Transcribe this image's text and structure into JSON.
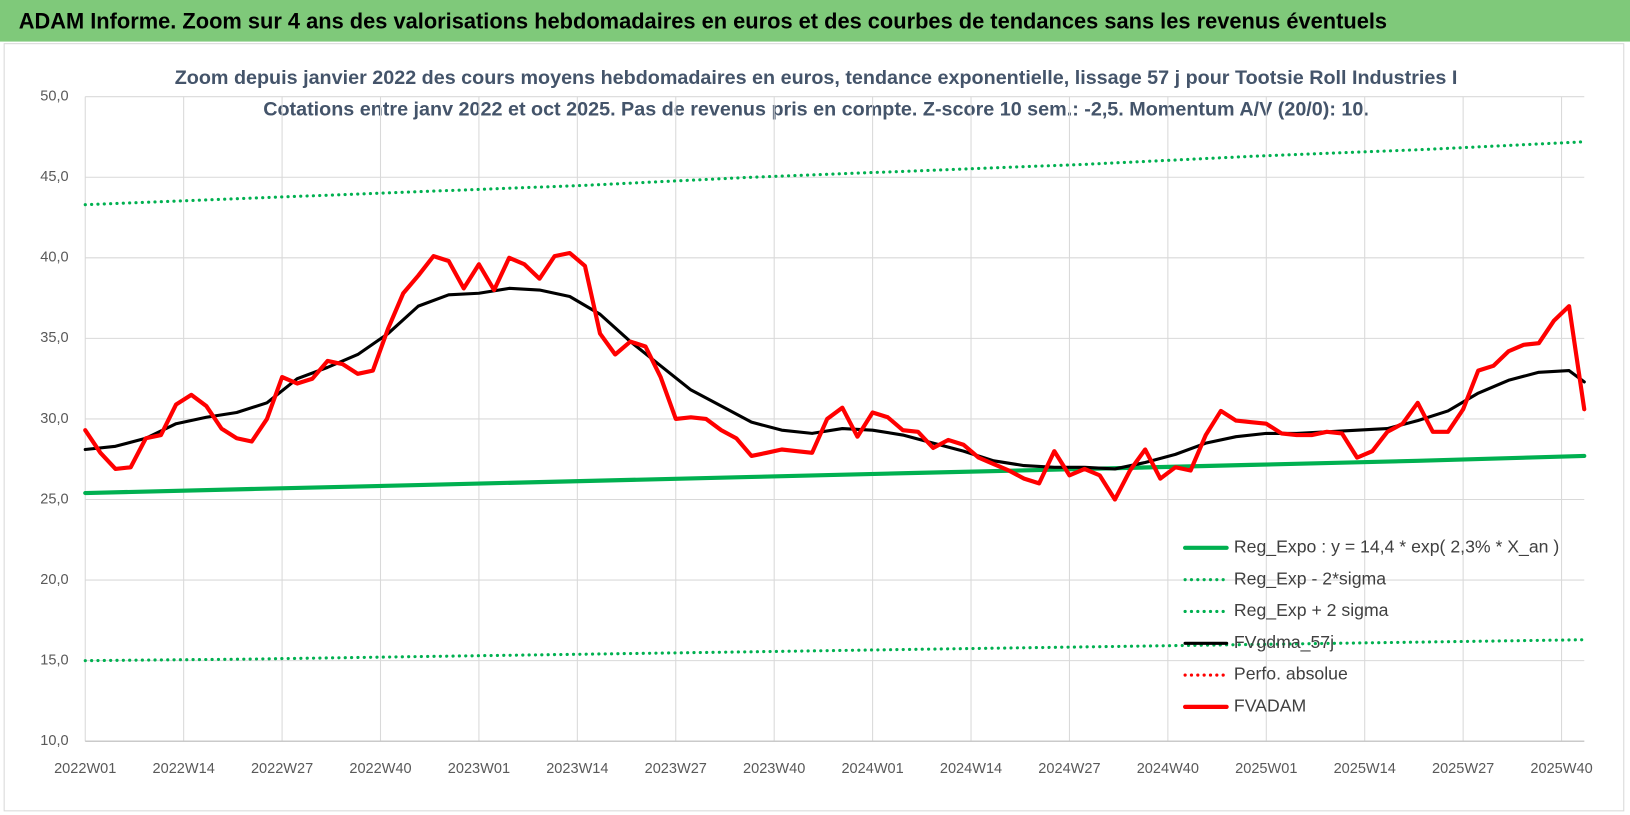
{
  "chart_data": {
    "type": "line",
    "header": "ADAM Informe. Zoom sur 4 ans des valorisations hebdomadaires en euros et des courbes de tendances sans les revenus éventuels",
    "title": "Zoom depuis janvier 2022 des cours moyens hebdomadaires en euros, tendance exponentielle, lissage 57 j pour Tootsie Roll Industries I",
    "subtitle": "Cotations entre janv 2022 et oct 2025. Pas de revenus pris en compte. Z-score 10 sem.: -2,5. Momentum A/V (20/0): 10.",
    "xlim": [
      0,
      198
    ],
    "xticks": [
      {
        "value": 0,
        "label": "2022W01"
      },
      {
        "value": 13,
        "label": "2022W14"
      },
      {
        "value": 26,
        "label": "2022W27"
      },
      {
        "value": 39,
        "label": "2022W40"
      },
      {
        "value": 52,
        "label": "2023W01"
      },
      {
        "value": 65,
        "label": "2023W14"
      },
      {
        "value": 78,
        "label": "2023W27"
      },
      {
        "value": 91,
        "label": "2023W40"
      },
      {
        "value": 104,
        "label": "2024W01"
      },
      {
        "value": 117,
        "label": "2024W14"
      },
      {
        "value": 130,
        "label": "2024W27"
      },
      {
        "value": 143,
        "label": "2024W40"
      },
      {
        "value": 156,
        "label": "2025W01"
      },
      {
        "value": 169,
        "label": "2025W14"
      },
      {
        "value": 182,
        "label": "2025W27"
      },
      {
        "value": 195,
        "label": "2025W40"
      }
    ],
    "ylim": [
      10,
      50
    ],
    "yticks": [
      {
        "value": 10,
        "label": "10,0"
      },
      {
        "value": 15,
        "label": "15,0"
      },
      {
        "value": 20,
        "label": "20,0"
      },
      {
        "value": 25,
        "label": "25,0"
      },
      {
        "value": 30,
        "label": "30,0"
      },
      {
        "value": 35,
        "label": "35,0"
      },
      {
        "value": 40,
        "label": "40,0"
      },
      {
        "value": 45,
        "label": "45,0"
      },
      {
        "value": 50,
        "label": "50,0"
      }
    ],
    "grid": true,
    "legend": "lower right",
    "series": [
      {
        "name": "Reg_Expo : y = 14,4 * exp( 2,3% * X_an )",
        "color": "#00b050",
        "style": "solid",
        "width": 4,
        "x": [
          0,
          22,
          44,
          66,
          88,
          110,
          132,
          154,
          176,
          198
        ],
        "values": [
          25.4,
          25.65,
          25.9,
          26.15,
          26.4,
          26.65,
          26.9,
          27.15,
          27.4,
          27.7
        ]
      },
      {
        "name": "Reg_Exp - 2*sigma",
        "color": "#00b050",
        "style": "dotted",
        "width": 3,
        "x": [
          0,
          22,
          44,
          66,
          88,
          110,
          132,
          154,
          176,
          198
        ],
        "values": [
          15.0,
          15.1,
          15.25,
          15.4,
          15.55,
          15.7,
          15.85,
          16.0,
          16.15,
          16.3
        ]
      },
      {
        "name": "Reg_Exp + 2 sigma",
        "color": "#00b050",
        "style": "dotted",
        "width": 3,
        "x": [
          0,
          22,
          44,
          66,
          88,
          110,
          132,
          154,
          176,
          198
        ],
        "values": [
          43.3,
          43.7,
          44.1,
          44.5,
          45.0,
          45.4,
          45.8,
          46.3,
          46.7,
          47.2
        ]
      },
      {
        "name": "FVgdma_57j",
        "color": "#000000",
        "style": "solid",
        "width": 3,
        "x": [
          0,
          4,
          8,
          12,
          16,
          20,
          24,
          28,
          32,
          36,
          40,
          44,
          48,
          52,
          56,
          60,
          64,
          68,
          72,
          76,
          80,
          84,
          88,
          92,
          96,
          100,
          104,
          108,
          112,
          116,
          120,
          124,
          128,
          132,
          136,
          140,
          144,
          148,
          152,
          156,
          160,
          164,
          168,
          172,
          176,
          180,
          184,
          188,
          192,
          196,
          198
        ],
        "values": [
          28.1,
          28.3,
          28.8,
          29.7,
          30.1,
          30.4,
          31.0,
          32.5,
          33.2,
          34.0,
          35.3,
          37.0,
          37.7,
          37.8,
          38.1,
          38.0,
          37.6,
          36.5,
          34.8,
          33.3,
          31.8,
          30.8,
          29.8,
          29.3,
          29.1,
          29.4,
          29.3,
          29.0,
          28.5,
          28.0,
          27.4,
          27.1,
          27.0,
          27.0,
          26.9,
          27.3,
          27.8,
          28.5,
          28.9,
          29.1,
          29.1,
          29.2,
          29.3,
          29.4,
          29.9,
          30.5,
          31.6,
          32.4,
          32.9,
          33.0,
          32.3
        ]
      },
      {
        "name": "Perfo. absolue",
        "color": "#ff0000",
        "style": "dotted",
        "width": 3,
        "x": [],
        "values": []
      },
      {
        "name": "FVADAM",
        "color": "#ff0000",
        "style": "solid",
        "width": 4,
        "x": [
          0,
          2,
          4,
          6,
          8,
          10,
          12,
          14,
          16,
          18,
          20,
          22,
          24,
          26,
          28,
          30,
          32,
          34,
          36,
          38,
          40,
          42,
          44,
          46,
          48,
          50,
          52,
          54,
          56,
          58,
          60,
          62,
          64,
          66,
          68,
          70,
          72,
          74,
          76,
          78,
          80,
          82,
          84,
          86,
          88,
          90,
          92,
          94,
          96,
          98,
          100,
          102,
          104,
          106,
          108,
          110,
          112,
          114,
          116,
          118,
          120,
          122,
          124,
          126,
          128,
          130,
          132,
          134,
          136,
          138,
          140,
          142,
          144,
          146,
          148,
          150,
          152,
          154,
          156,
          158,
          160,
          162,
          164,
          166,
          168,
          170,
          172,
          174,
          176,
          178,
          180,
          182,
          184,
          186,
          188,
          190,
          192,
          194,
          196,
          198
        ],
        "values": [
          29.3,
          27.9,
          26.9,
          27.0,
          28.8,
          29.0,
          30.9,
          31.5,
          30.8,
          29.4,
          28.8,
          28.6,
          30.0,
          32.6,
          32.2,
          32.5,
          33.6,
          33.4,
          32.8,
          33.0,
          35.6,
          37.8,
          38.9,
          40.1,
          39.8,
          38.1,
          39.6,
          38.0,
          40.0,
          39.6,
          38.7,
          40.1,
          40.3,
          39.5,
          35.3,
          34.0,
          34.8,
          34.5,
          32.6,
          30.0,
          30.1,
          30.0,
          29.3,
          28.8,
          27.7,
          27.9,
          28.1,
          28.0,
          27.9,
          30.0,
          30.7,
          28.9,
          30.4,
          30.1,
          29.3,
          29.2,
          28.2,
          28.7,
          28.4,
          27.6,
          27.2,
          26.8,
          26.3,
          26.0,
          28.0,
          26.5,
          26.9,
          26.5,
          25.0,
          26.8,
          28.1,
          26.3,
          27.0,
          26.8,
          29.0,
          30.5,
          29.9,
          29.8,
          29.7,
          29.1,
          29.0,
          29.0,
          29.2,
          29.1,
          27.6,
          28.0,
          29.2,
          29.7,
          31.0,
          29.2,
          29.2,
          30.6,
          33.0,
          33.3,
          34.2,
          34.6,
          34.7,
          36.1,
          37.0,
          30.6
        ]
      }
    ]
  }
}
